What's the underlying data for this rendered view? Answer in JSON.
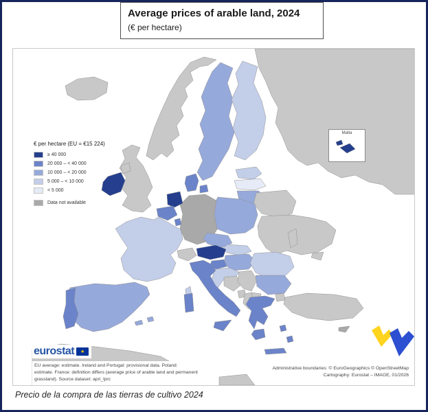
{
  "title_box": {
    "title": "Average prices of arable land, 2024",
    "subtitle": "(€ per hectare)"
  },
  "legend": {
    "title": "€ per hectare (EU = €15 224)",
    "items": [
      {
        "label": "≥ 40 000",
        "color": "#253f8e"
      },
      {
        "label": "20 000 – < 40 000",
        "color": "#6b83c9"
      },
      {
        "label": "10 000 – < 20 000",
        "color": "#96a9db"
      },
      {
        "label": "5 000 – < 10 000",
        "color": "#c3cee9"
      },
      {
        "label": "< 5 000",
        "color": "#e6ebf7"
      },
      {
        "label": "Data not available",
        "color": "#a9a9a9"
      }
    ]
  },
  "map": {
    "inset_label": "Malta",
    "sea_color": "#ffffff",
    "non_eu_color": "#c8c8c8",
    "countries": {
      "IS": "noneu",
      "NO": "noneu",
      "SE": "b3",
      "FI": "b4",
      "RU": "noneu",
      "RU_KGD": "noneu",
      "EE": "b4",
      "LV": "b5",
      "LT": "b3",
      "BY": "noneu",
      "UA": "noneu",
      "UA_CRIMEA": "noneu",
      "MD": "noneu",
      "DK": "b2",
      "DK_ISLES": "b2",
      "DE": "na",
      "NL": "b1",
      "BE": "b2",
      "LU": "b2",
      "PL": "b3",
      "CZ": "b3",
      "SK": "b4",
      "FR": "b4",
      "FR_CORSICA": "b4",
      "CH": "noneu",
      "AT": "b1",
      "HU": "b3",
      "SI": "b2",
      "HR": "b4",
      "BA": "noneu",
      "RS": "noneu",
      "ME": "noneu",
      "AL": "noneu",
      "MK": "noneu",
      "RO": "b4",
      "BG": "b3",
      "GR": "b2",
      "GR_PELOPONNESE": "b2",
      "GR_CRETE": "b2",
      "GR_ISLANDS": "b2",
      "GR_ISLANDS2": "b2",
      "TR": "noneu",
      "TR_THRACE": "noneu",
      "CY": "na",
      "IT": "b2",
      "IT_SICILY": "b2",
      "IT_SARDINIA": "b2",
      "ES": "b3",
      "ES_BALEARICS": "b3",
      "ES_BALEARICS2": "b3",
      "PT": "b2",
      "IE": "b1",
      "UK": "noneu",
      "UK_NI": "noneu",
      "AFRICA": "noneu",
      "AFRICA2": "noneu",
      "MT": "b1"
    }
  },
  "image_logo": {
    "yellow": "#ffd41f",
    "blue": "#2d4fd1"
  },
  "footer": {
    "logo_text": "eurostat",
    "logo_color": "#2555a4",
    "flag_bg": "#003399",
    "flag_star": "#ffcc00",
    "footnote": "EU average: estimate. Ireland and Portugal: provisional data. Poland: estimate. France: definition differs (average price of arable land and permanent grassland). Source dataset: apri_lprc",
    "attribution_line1": "Administrative boundaries: © EuroGeographics © OpenStreetMap",
    "attribution_line2": "Cartography: Eurostat – IMAGE, 01/2026"
  },
  "caption": "Precio de la compra de las tierras de cultivo 2024"
}
